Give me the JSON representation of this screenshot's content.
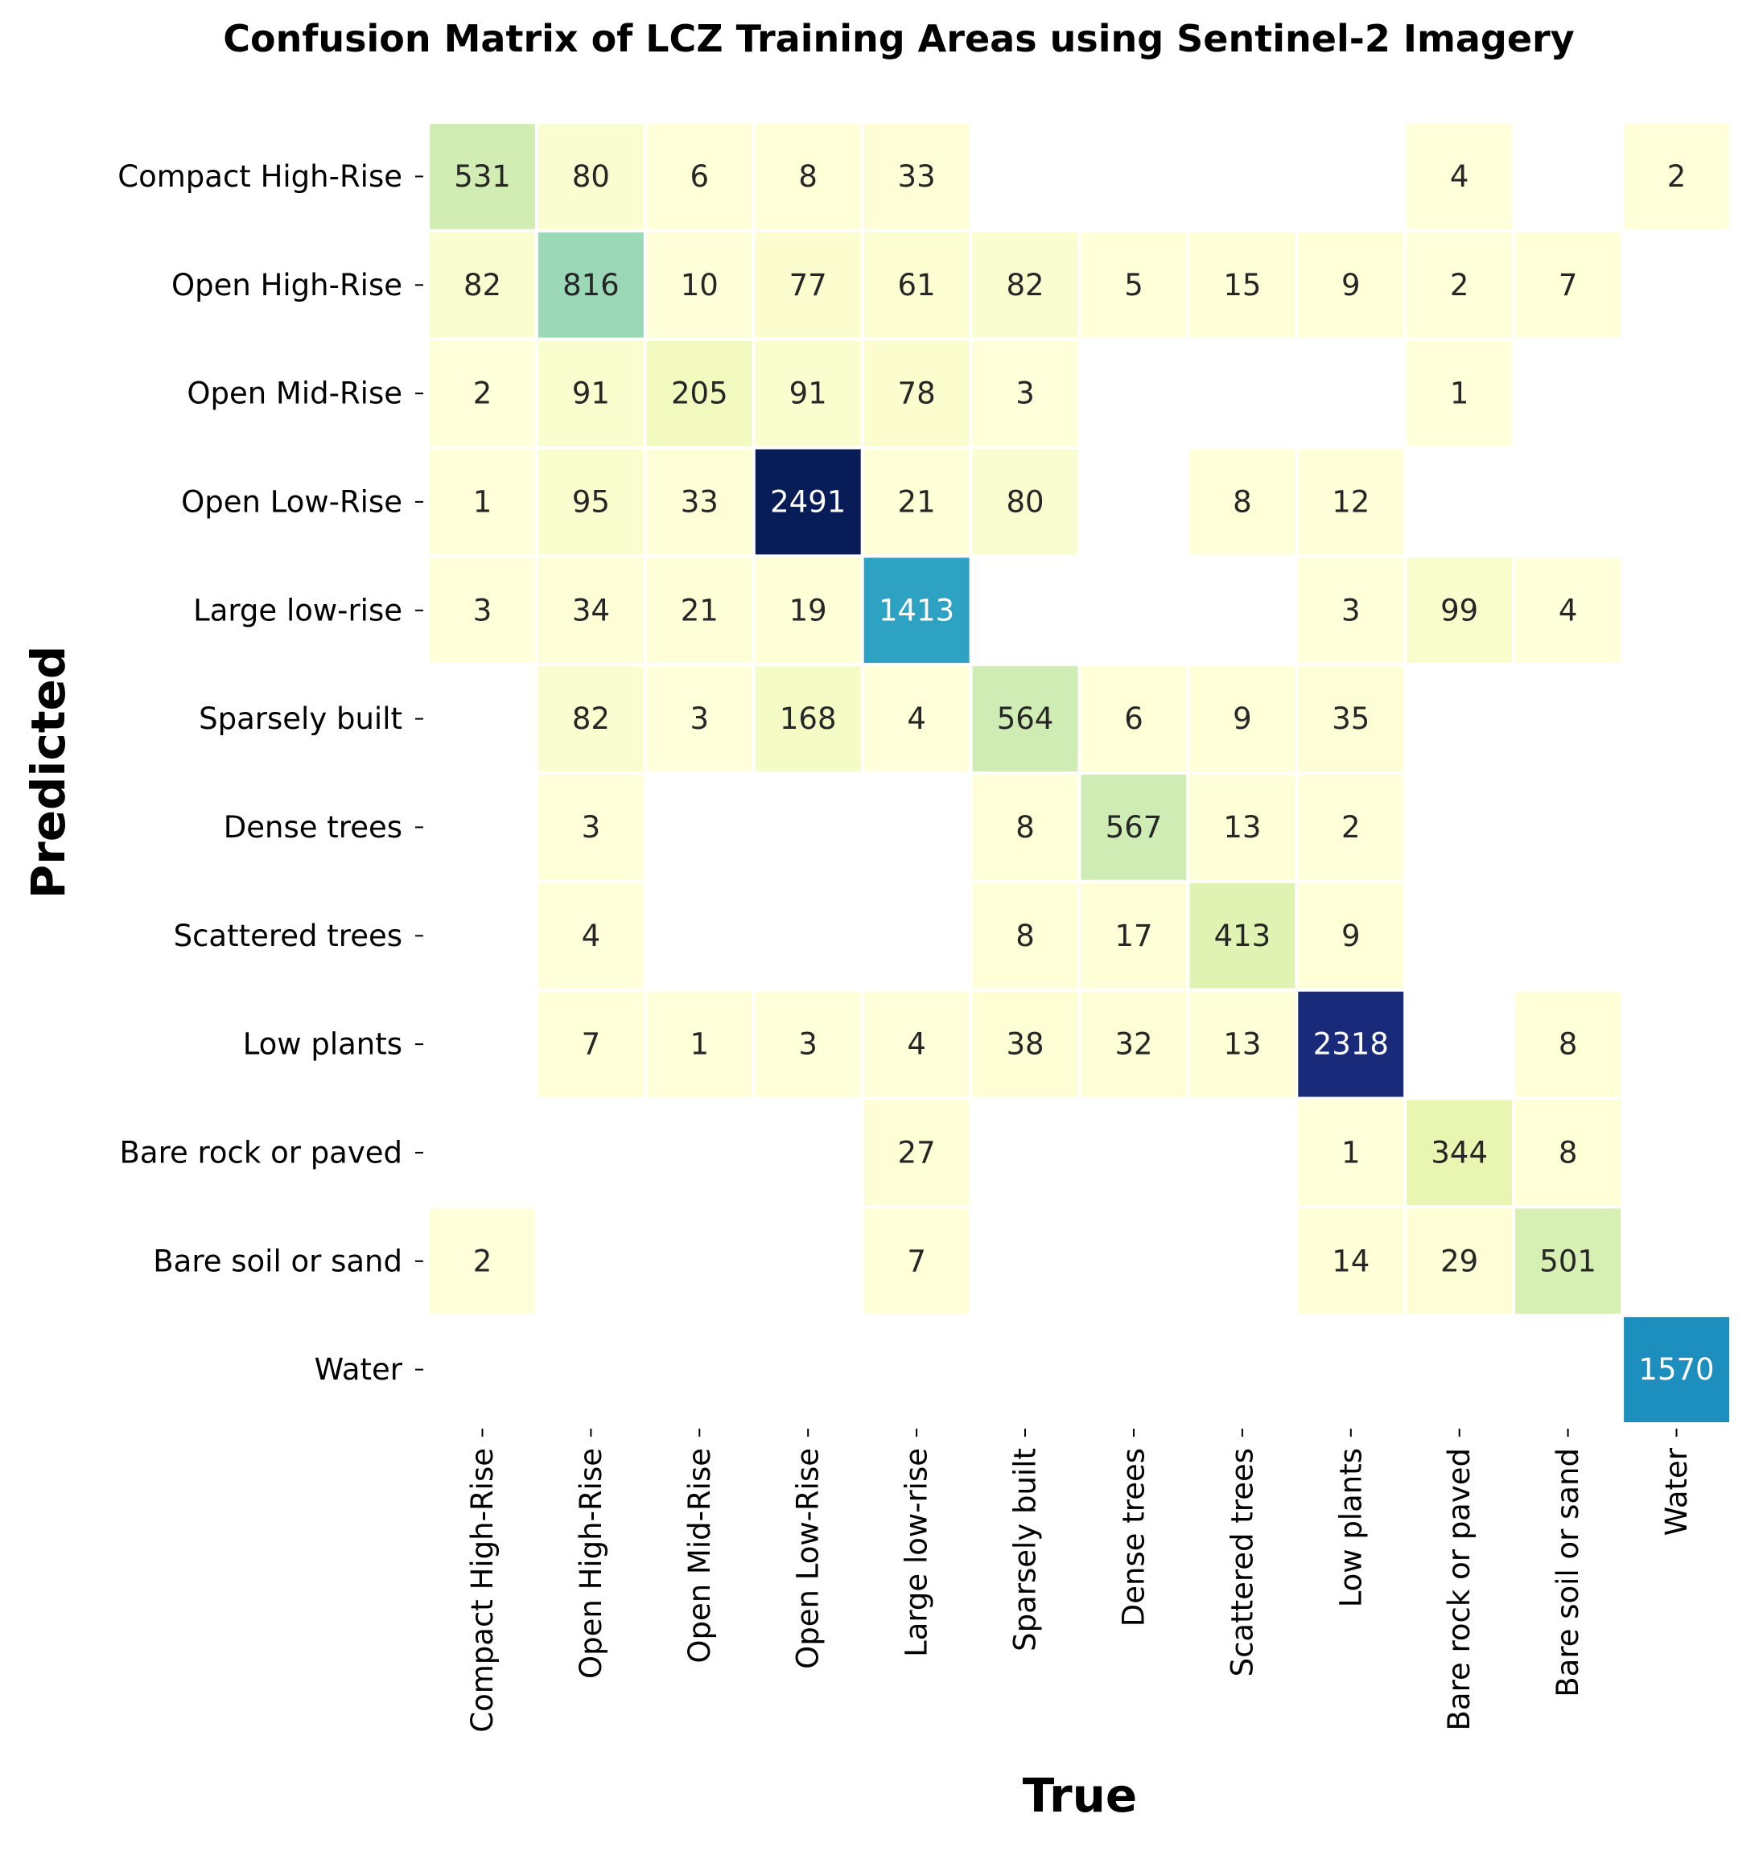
{
  "chart_data": {
    "type": "heatmap",
    "title": "Confusion Matrix of LCZ Training Areas using Sentinel-2 Imagery",
    "xlabel": "True",
    "ylabel": "Predicted",
    "x_categories": [
      "Compact High-Rise",
      "Open High-Rise",
      "Open Mid-Rise",
      "Open Low-Rise",
      "Large low-rise",
      "Sparsely built",
      "Dense trees",
      "Scattered trees",
      "Low plants",
      "Bare rock or paved",
      "Bare soil or sand",
      "Water"
    ],
    "y_categories": [
      "Compact High-Rise",
      "Open High-Rise",
      "Open Mid-Rise",
      "Open Low-Rise",
      "Large low-rise",
      "Sparsely built",
      "Dense trees",
      "Scattered trees",
      "Low plants",
      "Bare rock or paved",
      "Bare soil or sand",
      "Water"
    ],
    "values": [
      [
        531,
        80,
        6,
        8,
        33,
        null,
        null,
        null,
        null,
        4,
        null,
        2
      ],
      [
        82,
        816,
        10,
        77,
        61,
        82,
        5,
        15,
        9,
        2,
        7,
        null
      ],
      [
        2,
        91,
        205,
        91,
        78,
        3,
        null,
        null,
        null,
        1,
        null,
        null
      ],
      [
        1,
        95,
        33,
        2491,
        21,
        80,
        null,
        8,
        12,
        null,
        null,
        null
      ],
      [
        3,
        34,
        21,
        19,
        1413,
        null,
        null,
        null,
        3,
        99,
        4,
        null
      ],
      [
        null,
        82,
        3,
        168,
        4,
        564,
        6,
        9,
        35,
        null,
        null,
        null
      ],
      [
        null,
        3,
        null,
        null,
        null,
        8,
        567,
        13,
        2,
        null,
        null,
        null
      ],
      [
        null,
        4,
        null,
        null,
        null,
        8,
        17,
        413,
        9,
        null,
        null,
        null
      ],
      [
        null,
        7,
        1,
        3,
        4,
        38,
        32,
        13,
        2318,
        null,
        8,
        null
      ],
      [
        null,
        null,
        null,
        null,
        27,
        null,
        null,
        null,
        1,
        344,
        8,
        null
      ],
      [
        2,
        null,
        null,
        null,
        7,
        null,
        null,
        null,
        14,
        29,
        501,
        null
      ],
      [
        null,
        null,
        null,
        null,
        null,
        null,
        null,
        null,
        null,
        null,
        null,
        1570
      ]
    ],
    "colormap": "YlGnBu",
    "color_range": [
      1,
      2491
    ],
    "grid": false
  }
}
